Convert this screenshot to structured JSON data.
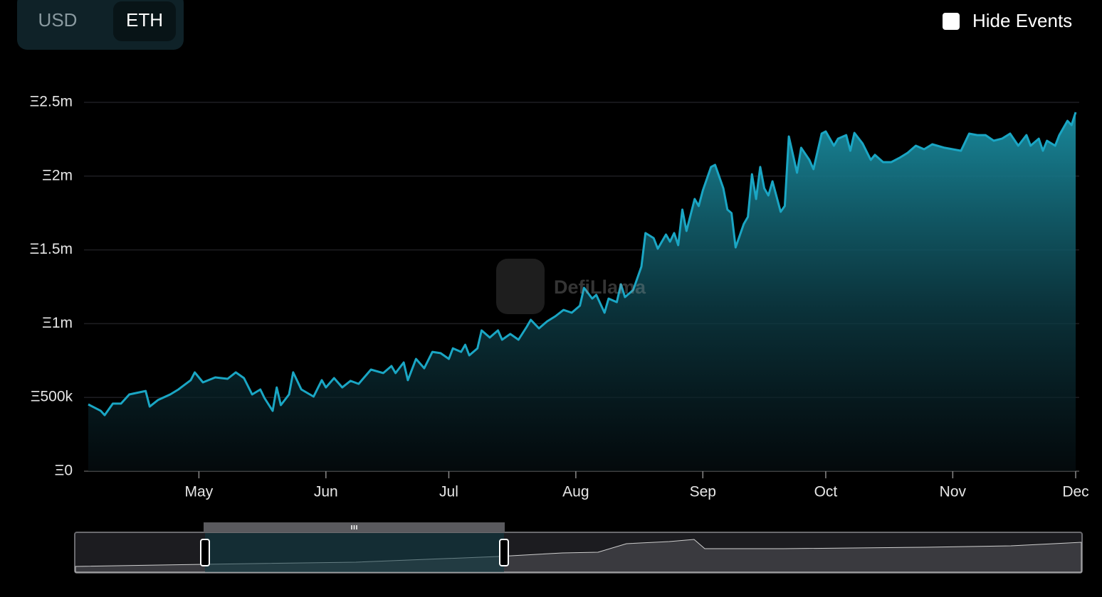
{
  "ui": {
    "currency_options": [
      "USD",
      "ETH"
    ],
    "hide_events": "Hide Events",
    "watermark": "DefiLlama"
  },
  "chart_data": {
    "type": "area",
    "color": "#1aa6c4",
    "grid": true,
    "x": [
      0,
      3,
      4,
      6,
      8,
      10,
      14,
      15,
      17,
      20,
      22,
      25,
      26,
      28,
      31,
      34,
      36,
      38,
      40,
      42,
      43,
      45,
      46,
      47,
      49,
      50,
      52,
      55,
      57,
      58,
      60,
      62,
      64,
      66,
      69,
      72,
      74,
      75,
      77,
      78,
      80,
      82,
      84,
      86,
      88,
      89,
      91,
      92,
      93,
      95,
      96,
      98,
      100,
      101,
      103,
      105,
      107,
      108,
      110,
      112,
      114,
      116,
      118,
      120,
      121,
      123,
      124,
      126,
      127,
      129,
      130,
      131,
      133,
      135,
      136,
      138,
      139,
      141,
      142,
      143,
      144,
      145,
      146,
      148,
      149,
      150,
      152,
      153,
      155,
      156,
      157,
      158,
      160,
      161,
      162,
      163,
      164,
      165,
      166,
      167,
      169,
      170,
      171,
      173,
      174,
      176,
      177,
      179,
      180,
      182,
      183,
      185,
      186,
      187,
      189,
      191,
      192,
      194,
      196,
      198,
      200,
      202,
      204,
      206,
      209,
      211,
      213,
      215,
      217,
      219,
      221,
      223,
      225,
      227,
      229,
      230,
      232,
      233,
      234,
      236,
      237,
      239,
      240,
      241
    ],
    "values": [
      453000,
      410000,
      380000,
      458000,
      458000,
      520000,
      544000,
      438000,
      482000,
      520000,
      554000,
      617000,
      670000,
      602000,
      636000,
      626000,
      670000,
      631000,
      520000,
      554000,
      496000,
      409000,
      568000,
      448000,
      520000,
      670000,
      554000,
      506000,
      617000,
      568000,
      631000,
      568000,
      612000,
      592000,
      689000,
      665000,
      713000,
      665000,
      737000,
      617000,
      761000,
      698000,
      809000,
      800000,
      761000,
      833000,
      809000,
      857000,
      785000,
      833000,
      954000,
      906000,
      954000,
      891000,
      930000,
      891000,
      978000,
      1026000,
      968000,
      1016000,
      1050000,
      1093000,
      1074000,
      1122000,
      1243000,
      1170000,
      1195000,
      1074000,
      1170000,
      1146000,
      1267000,
      1180000,
      1228000,
      1387000,
      1614000,
      1580000,
      1508000,
      1604000,
      1556000,
      1614000,
      1532000,
      1773000,
      1628000,
      1845000,
      1797000,
      1903000,
      2062000,
      2076000,
      1917000,
      1773000,
      1749000,
      1517000,
      1676000,
      1724000,
      2013000,
      1845000,
      2062000,
      1917000,
      1869000,
      1965000,
      1758000,
      1797000,
      2269000,
      2023000,
      2192000,
      2110000,
      2047000,
      2288000,
      2303000,
      2206000,
      2254000,
      2278000,
      2172000,
      2293000,
      2221000,
      2110000,
      2144000,
      2095000,
      2095000,
      2124000,
      2158000,
      2206000,
      2182000,
      2216000,
      2192000,
      2182000,
      2172000,
      2288000,
      2278000,
      2278000,
      2240000,
      2254000,
      2288000,
      2206000,
      2278000,
      2206000,
      2254000,
      2172000,
      2240000,
      2206000,
      2278000,
      2375000,
      2346000,
      2433000
    ],
    "xlim": [
      0,
      241
    ],
    "xticks": [
      {
        "value": 27,
        "label": "May"
      },
      {
        "value": 58,
        "label": "Jun"
      },
      {
        "value": 88,
        "label": "Jul"
      },
      {
        "value": 119,
        "label": "Aug"
      },
      {
        "value": 150,
        "label": "Sep"
      },
      {
        "value": 180,
        "label": "Oct"
      },
      {
        "value": 211,
        "label": "Nov"
      },
      {
        "value": 241,
        "label": "Dec"
      }
    ],
    "ylim": [
      0,
      2500000
    ],
    "yticks": [
      {
        "value": 0,
        "label": "Ξ0"
      },
      {
        "value": 500000,
        "label": "Ξ500k"
      },
      {
        "value": 1000000,
        "label": "Ξ1m"
      },
      {
        "value": 1500000,
        "label": "Ξ1.5m"
      },
      {
        "value": 2000000,
        "label": "Ξ2m"
      },
      {
        "value": 2500000,
        "label": "Ξ2.5m"
      }
    ]
  }
}
